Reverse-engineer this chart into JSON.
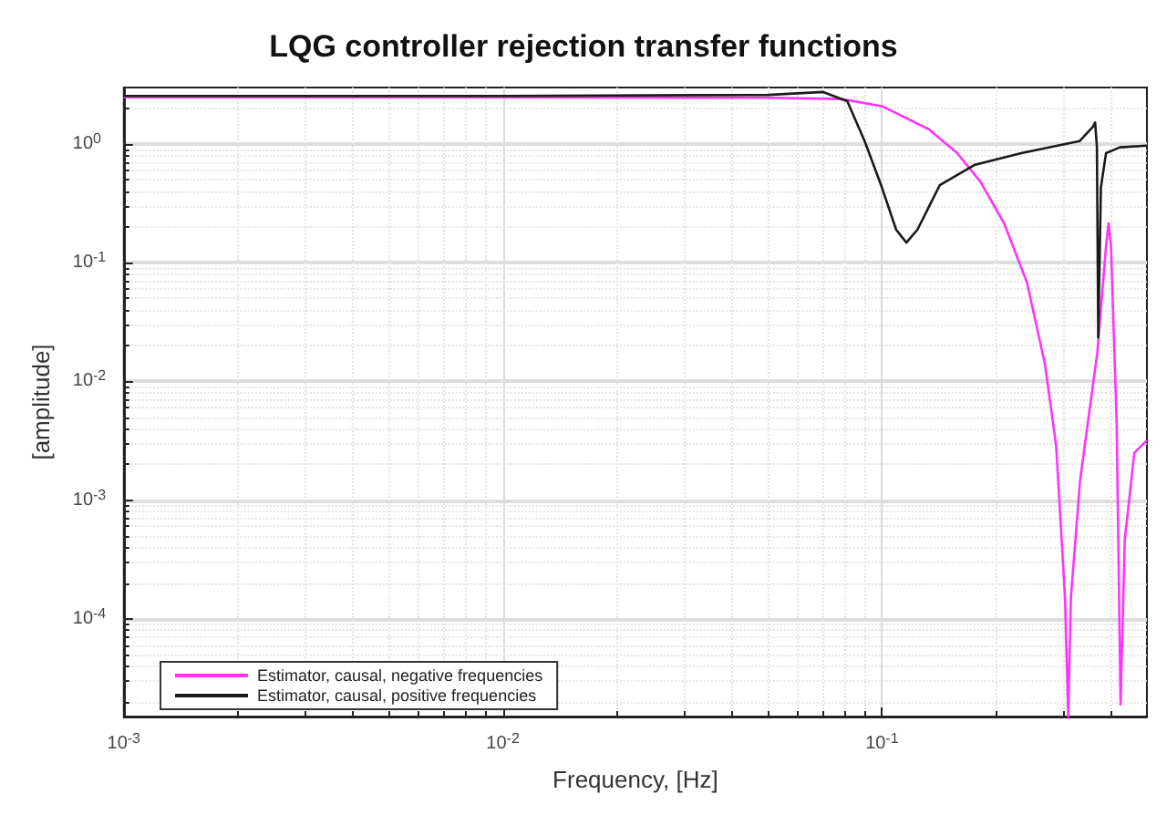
{
  "chart_data": {
    "type": "line",
    "title": "LQG controller rejection transfer functions",
    "xlabel": "Frequency, [Hz]",
    "ylabel": "[amplitude]",
    "log": "xy",
    "grid": true,
    "legend": "bottom left",
    "marker": "none",
    "line_style": "solid",
    "xlim": [
      0.001,
      0.5
    ],
    "ylim": [
      1.5e-05,
      3
    ],
    "xticks": [
      {
        "value": 0.001,
        "label": "10$^{-3}$"
      },
      {
        "value": 0.01,
        "label": "10$^{-2}$"
      },
      {
        "value": 0.1,
        "label": "10$^{-1}$"
      }
    ],
    "yticks": [
      {
        "value": 0.0001,
        "label": "10$^{-4}$"
      },
      {
        "value": 0.001,
        "label": "10$^{-3}$"
      },
      {
        "value": 0.01,
        "label": "10$^{-2}$"
      },
      {
        "value": 0.1,
        "label": "10$^{-1}$"
      },
      {
        "value": 1,
        "label": "10$^{0}$"
      }
    ],
    "series": [
      {
        "name": "Estimator, causal, negative frequencies",
        "color": "#ff33ff",
        "x": [
          0.001,
          0.01,
          0.05,
          0.078,
          0.1,
          0.133,
          0.158,
          0.182,
          0.21,
          0.241,
          0.269,
          0.288,
          0.304,
          0.31,
          0.315,
          0.333,
          0.37,
          0.39,
          0.396,
          0.402,
          0.416,
          0.426,
          0.437,
          0.463,
          0.5
        ],
        "values": [
          2.48,
          2.48,
          2.46,
          2.4,
          2.09,
          1.33,
          0.84,
          0.48,
          0.215,
          0.069,
          0.0141,
          0.0029,
          0.00015,
          1.5e-05,
          0.00015,
          0.00145,
          0.0176,
          0.137,
          0.215,
          0.137,
          0.0045,
          1.9e-05,
          0.00046,
          0.0025,
          0.0032
        ]
      },
      {
        "name": "Estimator, causal, positive frequencies",
        "color": "#1a1a1a",
        "x": [
          0.001,
          0.01,
          0.05,
          0.07,
          0.081,
          0.09,
          0.1,
          0.109,
          0.116,
          0.124,
          0.142,
          0.176,
          0.233,
          0.332,
          0.36,
          0.365,
          0.369,
          0.372,
          0.378,
          0.39,
          0.424,
          0.5
        ],
        "values": [
          2.55,
          2.55,
          2.6,
          2.75,
          2.3,
          1.06,
          0.43,
          0.19,
          0.148,
          0.19,
          0.45,
          0.67,
          0.84,
          1.06,
          1.4,
          1.52,
          0.94,
          0.0235,
          0.43,
          0.84,
          0.94,
          0.97
        ]
      }
    ]
  }
}
